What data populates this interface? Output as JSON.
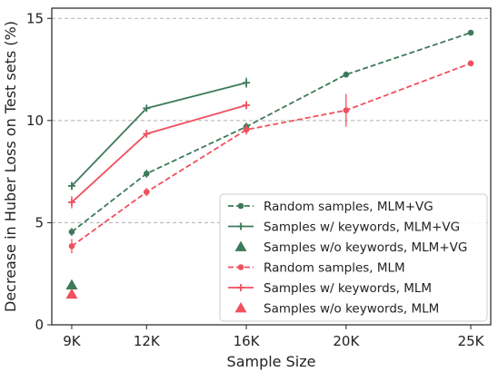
{
  "chart_data": {
    "type": "line",
    "xlabel": "Sample Size",
    "ylabel": "Decrease in Huber Loss on Test sets (%)",
    "x_ticks": [
      "9K",
      "12K",
      "16K",
      "20K",
      "25K"
    ],
    "x_tick_values": [
      9,
      12,
      16,
      20,
      25
    ],
    "y_ticks": [
      "0",
      "5",
      "10",
      "15"
    ],
    "y_tick_values": [
      0,
      5,
      10,
      15
    ],
    "xlim": [
      8.2,
      25.8
    ],
    "ylim": [
      0,
      15.5
    ],
    "grid": "horizontal dashed at major y ticks",
    "legend_position": "lower-right",
    "series": [
      {
        "name": "Random samples, MLM+VG",
        "style": "dashed-circle",
        "color": "#3d7a5a",
        "x": [
          9,
          12,
          16,
          20,
          25
        ],
        "y": [
          4.55,
          7.4,
          9.7,
          12.25,
          14.3
        ],
        "yerr": [
          0.2,
          0.2,
          0.2,
          0.15,
          0.1
        ]
      },
      {
        "name": "Samples w/ keywords, MLM+VG",
        "style": "solid-plus",
        "color": "#3d7a5a",
        "x": [
          9,
          12,
          16
        ],
        "y": [
          6.8,
          10.6,
          11.85
        ],
        "yerr": [
          0.2,
          0.15,
          0.25
        ]
      },
      {
        "name": "Samples w/o keywords, MLM+VG",
        "style": "triangle",
        "color": "#3d7a5a",
        "x": [
          9
        ],
        "y": [
          1.95
        ],
        "yerr": [
          0
        ]
      },
      {
        "name": "Random samples, MLM",
        "style": "dashed-circle",
        "color": "#f0505f",
        "x": [
          9,
          12,
          16,
          20,
          25
        ],
        "y": [
          3.85,
          6.5,
          9.55,
          10.5,
          12.8
        ],
        "yerr": [
          0.35,
          0.2,
          0.25,
          0.8,
          0.15
        ]
      },
      {
        "name": "Samples w/ keywords, MLM",
        "style": "solid-plus",
        "color": "#f0505f",
        "x": [
          9,
          12,
          16
        ],
        "y": [
          6.0,
          9.35,
          10.75
        ],
        "yerr": [
          0.3,
          0.2,
          0.2
        ]
      },
      {
        "name": "Samples w/o keywords, MLM",
        "style": "triangle",
        "color": "#f0505f",
        "x": [
          9
        ],
        "y": [
          1.5
        ],
        "yerr": [
          0
        ]
      }
    ]
  }
}
